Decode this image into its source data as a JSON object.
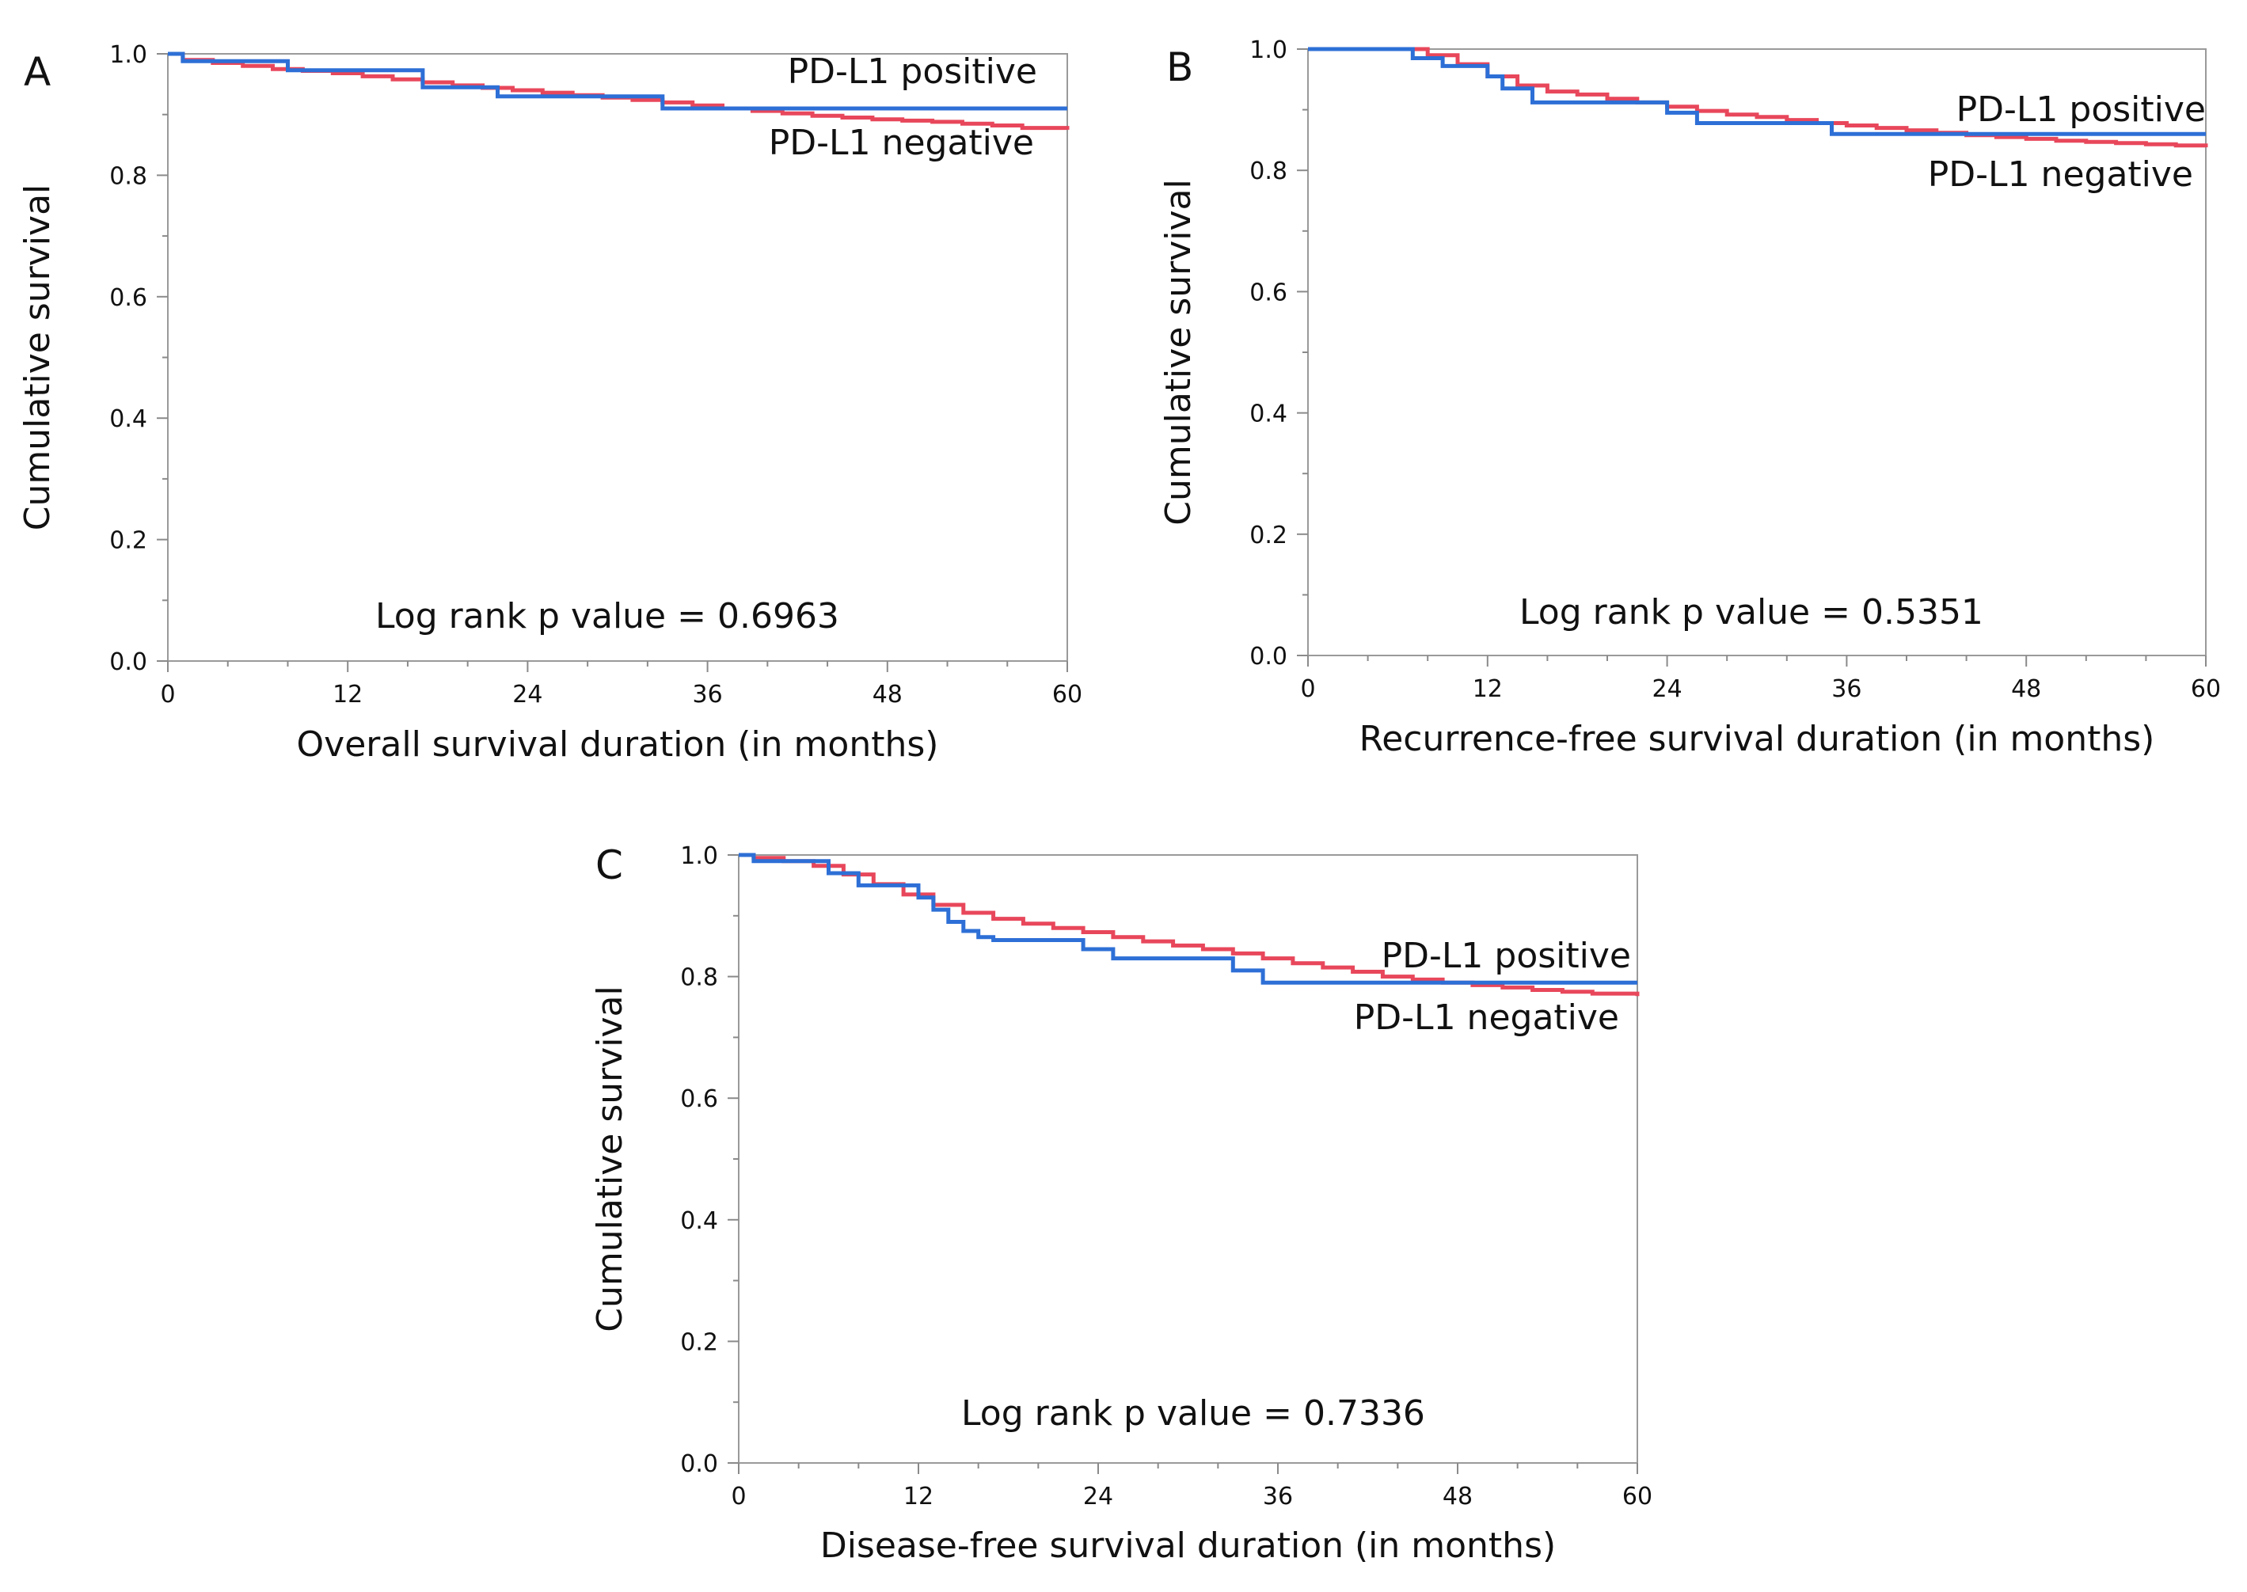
{
  "chart_data": [
    {
      "panel": "A",
      "type": "line",
      "xlabel": "Overall survival duration (in months)",
      "ylabel": "Cumulative survival",
      "xlim": [
        0,
        60
      ],
      "ylim": [
        0,
        1
      ],
      "x_ticks": [
        "0",
        "12",
        "24",
        "36",
        "48",
        "60"
      ],
      "y_ticks": [
        "0.0",
        "0.2",
        "0.4",
        "0.6",
        "0.8",
        "1.0"
      ],
      "annotation": "Log rank p value = 0.6963",
      "series": [
        {
          "name": "PD-L1 negative",
          "label": "PD-L1 negative",
          "color": "#e8475b",
          "x": [
            0,
            1,
            3,
            5,
            7,
            9,
            11,
            13,
            15,
            17,
            19,
            21,
            23,
            25,
            27,
            29,
            31,
            33,
            35,
            37,
            39,
            41,
            43,
            45,
            47,
            49,
            51,
            53,
            55,
            57,
            60
          ],
          "y": [
            1.0,
            0.99,
            0.985,
            0.98,
            0.975,
            0.972,
            0.968,
            0.963,
            0.958,
            0.953,
            0.948,
            0.944,
            0.94,
            0.936,
            0.932,
            0.928,
            0.924,
            0.92,
            0.915,
            0.91,
            0.906,
            0.902,
            0.898,
            0.895,
            0.892,
            0.89,
            0.888,
            0.885,
            0.882,
            0.878,
            0.875
          ]
        },
        {
          "name": "PD-L1 positive",
          "label": "PD-L1 positive",
          "color": "#2d6fd6",
          "x": [
            0,
            1,
            8,
            17,
            22,
            33,
            60
          ],
          "y": [
            1.0,
            0.988,
            0.973,
            0.945,
            0.93,
            0.91,
            0.91
          ]
        }
      ]
    },
    {
      "panel": "B",
      "type": "line",
      "xlabel": "Recurrence-free survival duration (in months)",
      "ylabel": "Cumulative survival",
      "xlim": [
        0,
        60
      ],
      "ylim": [
        0,
        1
      ],
      "x_ticks": [
        "0",
        "12",
        "24",
        "36",
        "48",
        "60"
      ],
      "y_ticks": [
        "0.0",
        "0.2",
        "0.4",
        "0.6",
        "0.8",
        "1.0"
      ],
      "annotation": "Log rank p value = 0.5351",
      "series": [
        {
          "name": "PD-L1 negative",
          "label": "PD-L1 negative",
          "color": "#e8475b",
          "x": [
            0,
            6,
            8,
            10,
            12,
            14,
            16,
            18,
            20,
            22,
            24,
            26,
            28,
            30,
            32,
            34,
            36,
            38,
            40,
            42,
            44,
            46,
            48,
            50,
            52,
            54,
            56,
            58,
            60
          ],
          "y": [
            1.0,
            1.0,
            0.99,
            0.975,
            0.955,
            0.94,
            0.93,
            0.925,
            0.918,
            0.912,
            0.905,
            0.898,
            0.892,
            0.888,
            0.883,
            0.878,
            0.874,
            0.87,
            0.866,
            0.862,
            0.858,
            0.855,
            0.852,
            0.849,
            0.847,
            0.845,
            0.843,
            0.841,
            0.838
          ]
        },
        {
          "name": "PD-L1 positive",
          "label": "PD-L1 positive",
          "color": "#2d6fd6",
          "x": [
            0,
            6,
            7,
            9,
            12,
            13,
            15,
            24,
            26,
            35,
            60
          ],
          "y": [
            1.0,
            1.0,
            0.985,
            0.972,
            0.955,
            0.935,
            0.912,
            0.895,
            0.878,
            0.86,
            0.86
          ]
        }
      ]
    },
    {
      "panel": "C",
      "type": "line",
      "xlabel": "Disease-free survival duration (in months)",
      "ylabel": "Cumulative survival",
      "xlim": [
        0,
        60
      ],
      "ylim": [
        0,
        1
      ],
      "x_ticks": [
        "0",
        "12",
        "24",
        "36",
        "48",
        "60"
      ],
      "y_ticks": [
        "0.0",
        "0.2",
        "0.4",
        "0.6",
        "0.8",
        "1.0"
      ],
      "annotation": "Log rank p value = 0.7336",
      "series": [
        {
          "name": "PD-L1 negative",
          "label": "PD-L1 negative",
          "color": "#e8475b",
          "x": [
            0,
            1,
            3,
            5,
            7,
            9,
            11,
            13,
            15,
            17,
            19,
            21,
            23,
            25,
            27,
            29,
            31,
            33,
            35,
            37,
            39,
            41,
            43,
            45,
            47,
            49,
            51,
            53,
            55,
            57,
            60
          ],
          "y": [
            1.0,
            0.995,
            0.99,
            0.982,
            0.968,
            0.952,
            0.935,
            0.918,
            0.905,
            0.895,
            0.887,
            0.88,
            0.873,
            0.865,
            0.858,
            0.851,
            0.845,
            0.838,
            0.83,
            0.822,
            0.815,
            0.808,
            0.8,
            0.795,
            0.79,
            0.786,
            0.782,
            0.778,
            0.775,
            0.772,
            0.768
          ]
        },
        {
          "name": "PD-L1 positive",
          "label": "PD-L1 positive",
          "color": "#2d6fd6",
          "x": [
            0,
            1,
            6,
            8,
            12,
            13,
            14,
            15,
            16,
            17,
            23,
            25,
            33,
            35,
            60
          ],
          "y": [
            1.0,
            0.99,
            0.97,
            0.95,
            0.93,
            0.91,
            0.89,
            0.875,
            0.865,
            0.86,
            0.845,
            0.83,
            0.81,
            0.79,
            0.79
          ]
        }
      ]
    }
  ]
}
